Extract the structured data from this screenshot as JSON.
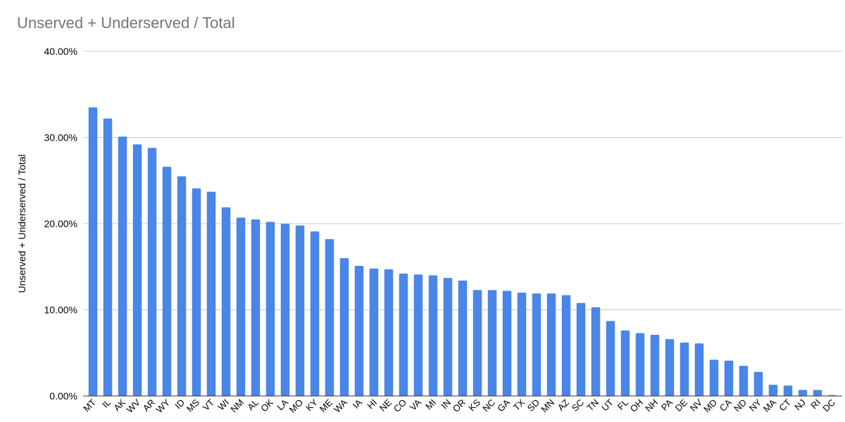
{
  "chart_data": {
    "type": "bar",
    "title": "Unserved + Underserved / Total",
    "xlabel": "",
    "ylabel": "Unserved + Underserved / Total",
    "ylim": [
      0,
      40
    ],
    "yticks": [
      "0.00%",
      "10.00%",
      "20.00%",
      "30.00%",
      "40.00%"
    ],
    "grid": true,
    "bar_color": "#4a86e8",
    "categories": [
      "MT",
      "IL",
      "AK",
      "WV",
      "AR",
      "WY",
      "ID",
      "MS",
      "VT",
      "WI",
      "NM",
      "AL",
      "OK",
      "LA",
      "MO",
      "KY",
      "ME",
      "WA",
      "IA",
      "HI",
      "NE",
      "CO",
      "VA",
      "MI",
      "IN",
      "OR",
      "KS",
      "NC",
      "GA",
      "TX",
      "SD",
      "MN",
      "AZ",
      "SC",
      "TN",
      "UT",
      "FL",
      "OH",
      "NH",
      "PA",
      "DE",
      "NV",
      "MD",
      "CA",
      "ND",
      "NY",
      "MA",
      "CT",
      "NJ",
      "RI",
      "DC"
    ],
    "values": [
      33.5,
      32.2,
      30.1,
      29.2,
      28.8,
      26.6,
      25.5,
      24.1,
      23.7,
      21.9,
      20.7,
      20.5,
      20.2,
      20.0,
      19.8,
      19.1,
      18.2,
      16.0,
      15.1,
      14.8,
      14.7,
      14.2,
      14.1,
      14.0,
      13.7,
      13.4,
      12.3,
      12.3,
      12.2,
      12.0,
      11.9,
      11.9,
      11.7,
      10.8,
      10.3,
      8.7,
      7.6,
      7.3,
      7.1,
      6.6,
      6.2,
      6.1,
      4.2,
      4.1,
      3.5,
      2.8,
      1.3,
      1.2,
      0.7,
      0.7,
      0.1
    ]
  }
}
